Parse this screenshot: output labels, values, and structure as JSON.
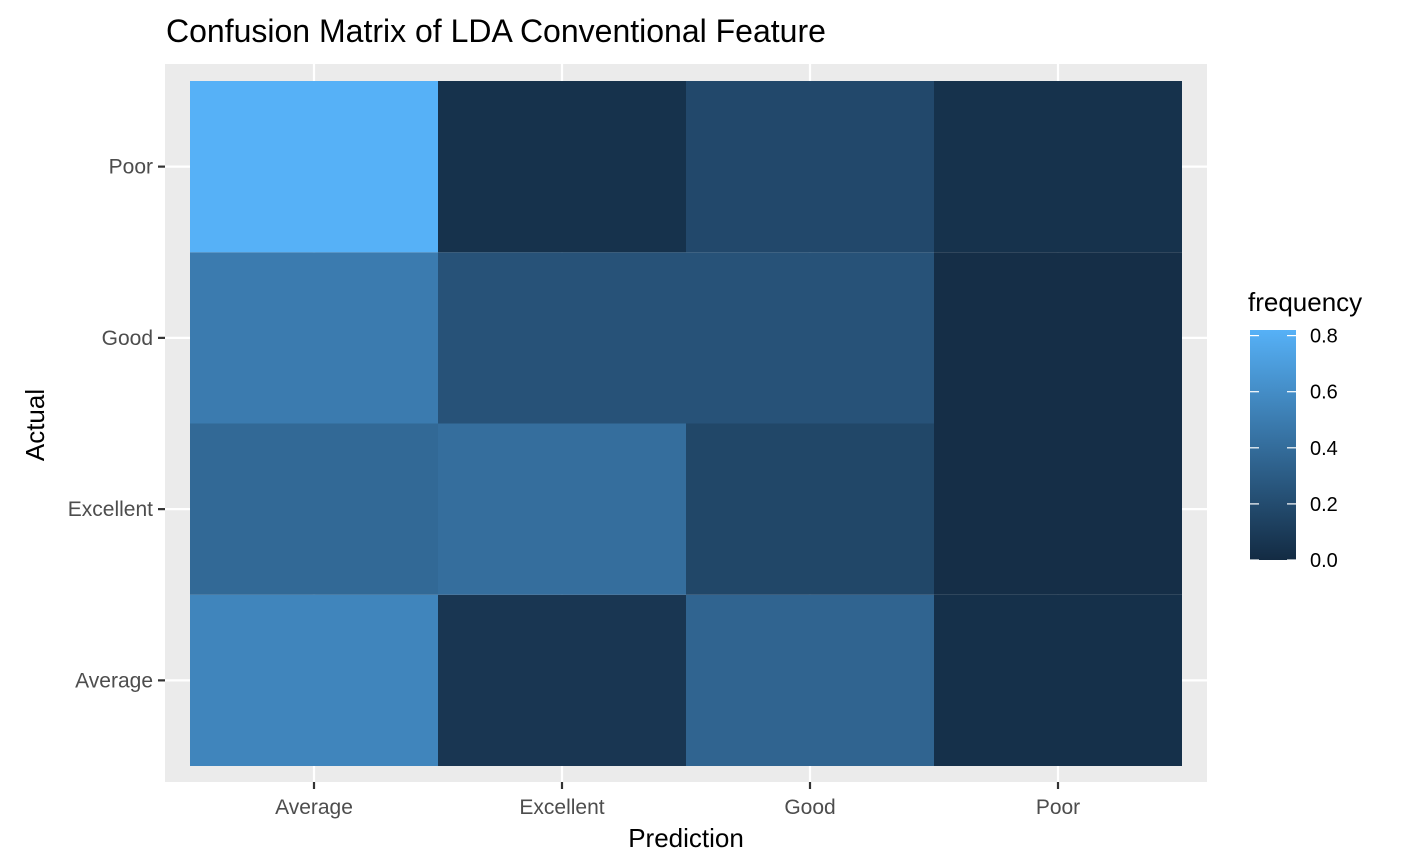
{
  "chart_data": {
    "type": "heatmap",
    "title": "Confusion Matrix of LDA Conventional Feature",
    "xlabel": "Prediction",
    "ylabel": "Actual",
    "x_categories": [
      "Average",
      "Excellent",
      "Good",
      "Poor"
    ],
    "y_categories": [
      "Average",
      "Excellent",
      "Good",
      "Poor"
    ],
    "cells": [
      {
        "actual": "Average",
        "prediction": "Average",
        "value": 0.55
      },
      {
        "actual": "Average",
        "prediction": "Excellent",
        "value": 0.07
      },
      {
        "actual": "Average",
        "prediction": "Good",
        "value": 0.35
      },
      {
        "actual": "Average",
        "prediction": "Poor",
        "value": 0.03
      },
      {
        "actual": "Excellent",
        "prediction": "Average",
        "value": 0.38
      },
      {
        "actual": "Excellent",
        "prediction": "Excellent",
        "value": 0.41
      },
      {
        "actual": "Excellent",
        "prediction": "Good",
        "value": 0.17
      },
      {
        "actual": "Excellent",
        "prediction": "Poor",
        "value": 0.02
      },
      {
        "actual": "Good",
        "prediction": "Average",
        "value": 0.49
      },
      {
        "actual": "Good",
        "prediction": "Excellent",
        "value": 0.24
      },
      {
        "actual": "Good",
        "prediction": "Good",
        "value": 0.24
      },
      {
        "actual": "Good",
        "prediction": "Poor",
        "value": 0.02
      },
      {
        "actual": "Poor",
        "prediction": "Average",
        "value": 0.82
      },
      {
        "actual": "Poor",
        "prediction": "Excellent",
        "value": 0.04
      },
      {
        "actual": "Poor",
        "prediction": "Good",
        "value": 0.18
      },
      {
        "actual": "Poor",
        "prediction": "Poor",
        "value": 0.04
      }
    ],
    "legend": {
      "title": "frequency",
      "ticks": [
        "0.0",
        "0.2",
        "0.4",
        "0.6",
        "0.8"
      ],
      "position": "right"
    },
    "color_low": "#132B43",
    "color_high": "#56B1F7",
    "panel_background": "#EBEBEB",
    "grid": true
  }
}
